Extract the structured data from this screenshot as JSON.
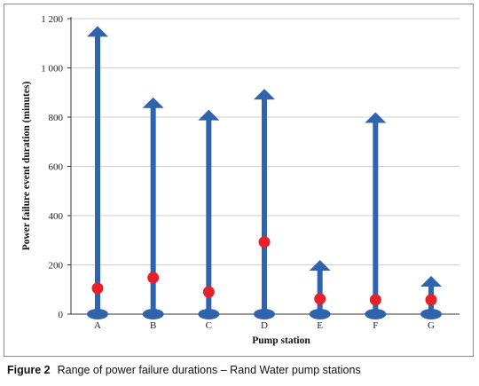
{
  "chart_data": {
    "type": "range",
    "title": "",
    "xlabel": "Pump station",
    "ylabel": "Power failure event duration (minutes)",
    "ylim": [
      0,
      1200
    ],
    "yticks": [
      0,
      200,
      400,
      600,
      800,
      1000,
      1200
    ],
    "ytick_labels": [
      "0",
      "200",
      "400",
      "600",
      "800",
      "1 000",
      "1 200"
    ],
    "grid": true,
    "categories": [
      "A",
      "B",
      "C",
      "D",
      "E",
      "F",
      "G"
    ],
    "series": [
      {
        "min": [
          0,
          0,
          0,
          0,
          0,
          0,
          0
        ]
      },
      {
        "max": [
          1170,
          880,
          830,
          915,
          220,
          820,
          155
        ]
      },
      {
        "marker": [
          105,
          148,
          90,
          293,
          62,
          58,
          58
        ]
      }
    ],
    "colors": {
      "range_bar": "#2f64ad",
      "marker": "#e8202a",
      "grid": "#cfcfcf"
    }
  },
  "caption": {
    "number": "Figure 2",
    "text": "Range of power failure durations – Rand Water pump stations"
  }
}
